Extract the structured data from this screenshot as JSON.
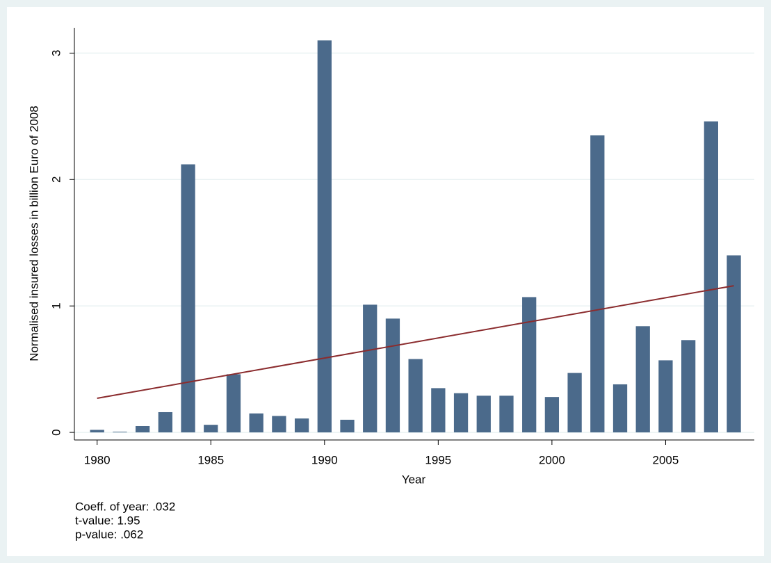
{
  "chart_data": {
    "type": "bar",
    "x_label": "Year",
    "y_label": "Normalised insured losses in billion Euro of 2008",
    "x": [
      1980,
      1981,
      1982,
      1983,
      1984,
      1985,
      1986,
      1987,
      1988,
      1989,
      1990,
      1991,
      1992,
      1993,
      1994,
      1995,
      1996,
      1997,
      1998,
      1999,
      2000,
      2001,
      2002,
      2003,
      2004,
      2005,
      2006,
      2007,
      2008
    ],
    "series": [
      {
        "color": "#4b6a8b",
        "values": [
          0.02,
          0.005,
          0.05,
          0.16,
          2.12,
          0.06,
          0.46,
          0.15,
          0.13,
          0.11,
          3.1,
          0.1,
          1.01,
          0.9,
          0.58,
          0.35,
          0.31,
          0.29,
          0.29,
          1.07,
          0.28,
          0.47,
          2.35,
          0.38,
          0.84,
          0.57,
          0.73,
          2.46,
          1.4
        ]
      }
    ],
    "trend": {
      "x": [
        1980,
        2008
      ],
      "values": [
        0.27,
        1.16
      ],
      "color": "#8b2c2e"
    },
    "xlim": [
      1979,
      2008.9
    ],
    "ylim": [
      -0.06,
      3.2
    ],
    "xticks": [
      1980,
      1985,
      1990,
      1995,
      2000,
      2005
    ],
    "yticks": [
      0,
      1,
      2,
      3
    ],
    "grid": true,
    "notes": [
      "Coeff. of year: .032",
      "t-value: 1.95",
      "p-value: .062"
    ]
  }
}
